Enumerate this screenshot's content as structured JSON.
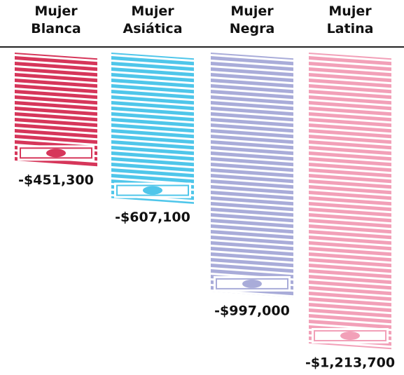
{
  "chart_data": {
    "type": "bar",
    "categories": [
      "Mujer Blanca",
      "Mujer Asiática",
      "Mujer Negra",
      "Mujer Latina"
    ],
    "values": [
      -451300,
      -607100,
      -997000,
      -1213700
    ],
    "value_labels": [
      "-$451,300",
      "-$607,100",
      "-$997,000",
      "-$1,213,700"
    ],
    "colors": [
      "#d6365a",
      "#4fc6ea",
      "#a9acd9",
      "#f2a0b8"
    ]
  }
}
